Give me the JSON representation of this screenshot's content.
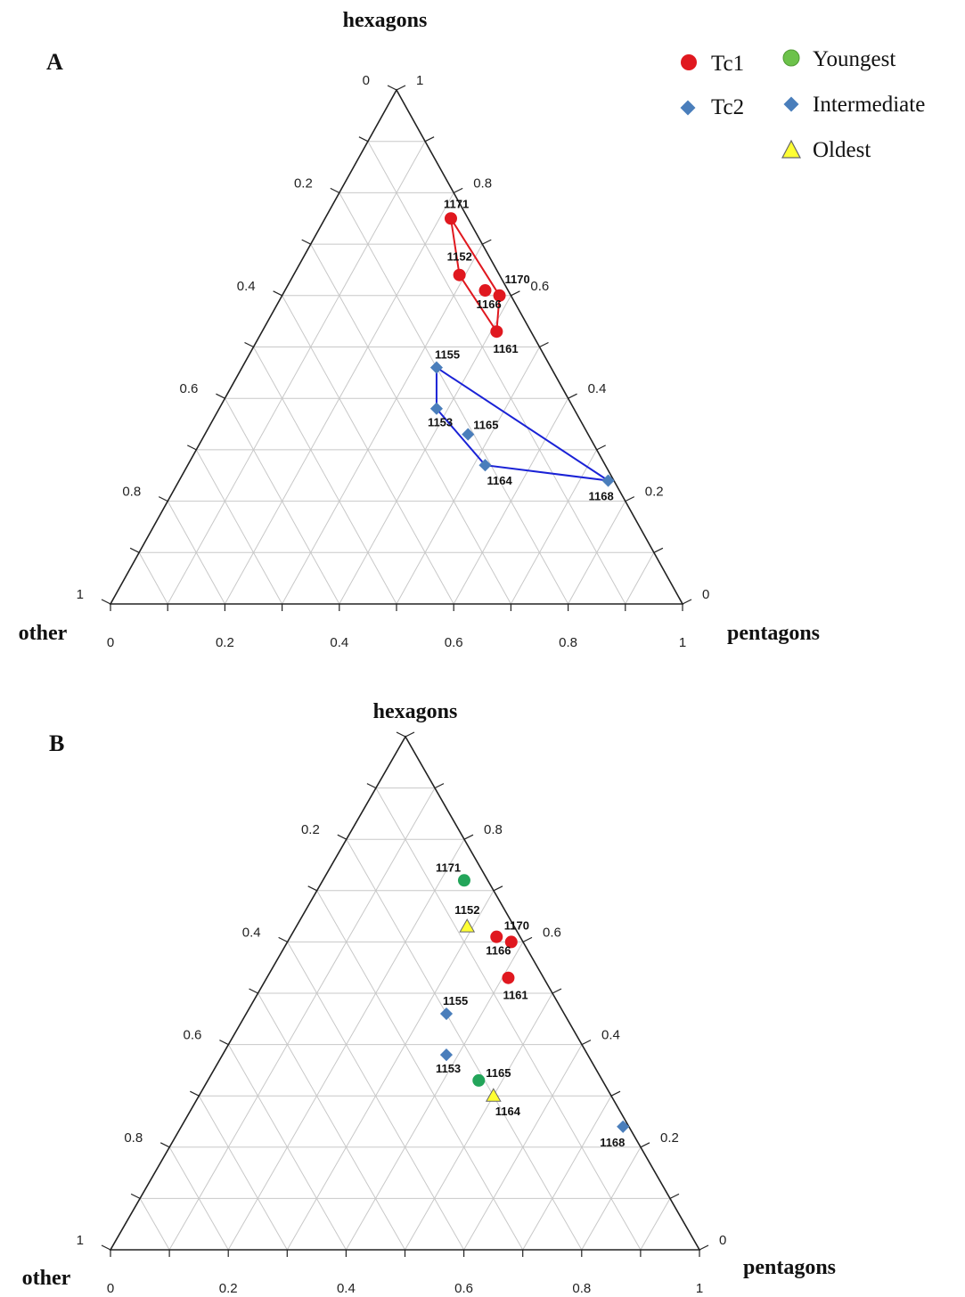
{
  "legend": {
    "items": [
      {
        "label": "Tc1",
        "marker": "circle",
        "color": "#e0181f"
      },
      {
        "label": "Tc2",
        "marker": "diamond",
        "color": "#4a7ebb"
      },
      {
        "label": "Youngest",
        "marker": "circle",
        "color": "#6cc24a"
      },
      {
        "label": "Intermediate",
        "marker": "diamond",
        "color": "#4a7ebb"
      },
      {
        "label": "Oldest",
        "marker": "triangle",
        "color": "#ffff33"
      }
    ]
  },
  "colors": {
    "red_marker": "#e0181f",
    "blue_marker": "#4a7ebb",
    "green_marker": "#23a55a",
    "yellow_marker": "#ffff33",
    "red_outline": "#e0181f",
    "blue_outline": "#1a22d6",
    "grid": "#c8c8c8"
  },
  "chart_data": [
    {
      "type": "scatter",
      "subtype": "ternary",
      "panel": "A",
      "axes": {
        "top": "hexagons",
        "left": "other",
        "right": "pentagons"
      },
      "left_ticks": [
        "0",
        "0.2",
        "0.4",
        "0.6",
        "0.8",
        "1"
      ],
      "right_ticks": [
        "1",
        "0.8",
        "0.6",
        "0.4",
        "0.2",
        "0"
      ],
      "bottom_ticks": [
        "0",
        "0.2",
        "0.4",
        "0.6",
        "0.8",
        "1"
      ],
      "grid": true,
      "groups": [
        {
          "name": "Tc1",
          "marker": "circle",
          "color": "#e0181f",
          "hull_color": "#e0181f",
          "hull": [
            "1171",
            "1170",
            "1161",
            "1152"
          ],
          "points": [
            {
              "label": "1171",
              "hexagons": 0.75,
              "pentagons": 0.22
            },
            {
              "label": "1152",
              "hexagons": 0.64,
              "pentagons": 0.29
            },
            {
              "label": "1170",
              "hexagons": 0.6,
              "pentagons": 0.38
            },
            {
              "label": "1166",
              "hexagons": 0.61,
              "pentagons": 0.35
            },
            {
              "label": "1161",
              "hexagons": 0.53,
              "pentagons": 0.41
            }
          ]
        },
        {
          "name": "Tc2",
          "marker": "diamond",
          "color": "#4a7ebb",
          "hull_color": "#1a22d6",
          "hull": [
            "1155",
            "1168",
            "1164",
            "1153"
          ],
          "points": [
            {
              "label": "1155",
              "hexagons": 0.46,
              "pentagons": 0.34
            },
            {
              "label": "1153",
              "hexagons": 0.38,
              "pentagons": 0.38
            },
            {
              "label": "1165",
              "hexagons": 0.33,
              "pentagons": 0.46
            },
            {
              "label": "1164",
              "hexagons": 0.27,
              "pentagons": 0.52
            },
            {
              "label": "1168",
              "hexagons": 0.24,
              "pentagons": 0.75
            }
          ]
        }
      ]
    },
    {
      "type": "scatter",
      "subtype": "ternary",
      "panel": "B",
      "axes": {
        "top": "hexagons",
        "left": "other",
        "right": "pentagons"
      },
      "left_ticks": [
        "0",
        "0.2",
        "0.4",
        "0.6",
        "0.8",
        "1"
      ],
      "right_ticks": [
        "1",
        "0.8",
        "0.6",
        "0.4",
        "0.2",
        "0"
      ],
      "bottom_ticks": [
        "0",
        "0.2",
        "0.4",
        "0.6",
        "0.8",
        "1"
      ],
      "grid": true,
      "groups": [
        {
          "name": "Youngest",
          "marker": "circle",
          "color": "#23a55a",
          "points": [
            {
              "label": "1171",
              "hexagons": 0.72,
              "pentagons": 0.24
            },
            {
              "label": "1165",
              "hexagons": 0.33,
              "pentagons": 0.46
            }
          ]
        },
        {
          "name": "Tc1",
          "marker": "circle",
          "color": "#e0181f",
          "points": [
            {
              "label": "1170",
              "hexagons": 0.6,
              "pentagons": 0.38
            },
            {
              "label": "1166",
              "hexagons": 0.61,
              "pentagons": 0.35
            },
            {
              "label": "1161",
              "hexagons": 0.53,
              "pentagons": 0.41
            }
          ]
        },
        {
          "name": "Intermediate",
          "marker": "diamond",
          "color": "#4a7ebb",
          "points": [
            {
              "label": "1155",
              "hexagons": 0.46,
              "pentagons": 0.34
            },
            {
              "label": "1153",
              "hexagons": 0.38,
              "pentagons": 0.38
            },
            {
              "label": "1168",
              "hexagons": 0.24,
              "pentagons": 0.75
            }
          ]
        },
        {
          "name": "Oldest",
          "marker": "triangle",
          "color": "#ffff33",
          "points": [
            {
              "label": "1152",
              "hexagons": 0.63,
              "pentagons": 0.29
            },
            {
              "label": "1164",
              "hexagons": 0.3,
              "pentagons": 0.5
            }
          ]
        }
      ]
    }
  ]
}
